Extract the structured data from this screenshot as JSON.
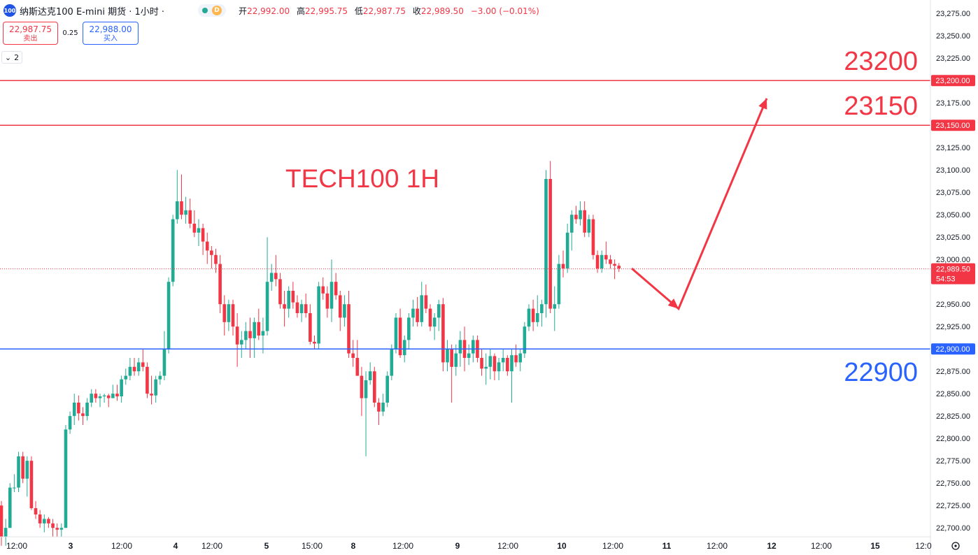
{
  "header": {
    "logo_text": "100",
    "symbol_title": "纳斯达克100 E-mini 期货 · 1小时 ·",
    "live_badge": "D",
    "ohlc": {
      "open_label": "开",
      "open": "22,992.00",
      "high_label": "高",
      "high": "22,995.75",
      "low_label": "低",
      "low": "22,987.75",
      "close_label": "收",
      "close": "22,989.50",
      "change": "−3.00 (−0.01%)"
    }
  },
  "trade": {
    "sell_price": "22,987.75",
    "sell_label": "卖出",
    "spread": "0.25",
    "buy_price": "22,988.00",
    "buy_label": "买入"
  },
  "indicator_toggle": {
    "count": "2"
  },
  "colors": {
    "up": "#22ab94",
    "down": "#f23645",
    "resistance": "#f23645",
    "support": "#2962ff",
    "annotation": "#f23645"
  },
  "chart_data": {
    "type": "candlestick",
    "title": "TECH100 1H",
    "ylim": [
      22690,
      23290
    ],
    "y_ticks": [
      "22,700.00",
      "22,725.00",
      "22,750.00",
      "22,775.00",
      "22,800.00",
      "22,825.00",
      "22,850.00",
      "22,875.00",
      "22,925.00",
      "22,950.00",
      "23,000.00",
      "23,025.00",
      "23,050.00",
      "23,075.00",
      "23,100.00",
      "23,125.00",
      "23,175.00",
      "23,225.00",
      "23,250.00",
      "23,275.00"
    ],
    "x_ticks": [
      "12:00",
      "3",
      "12:00",
      "4",
      "12:00",
      "5",
      "15:00",
      "8",
      "12:00",
      "9",
      "12:00",
      "10",
      "12:00",
      "11",
      "12:00",
      "12",
      "12:00",
      "15",
      "12:0"
    ],
    "last_price": {
      "value": 22989.5,
      "label": "22,989.50",
      "countdown": "54:53"
    },
    "levels": [
      {
        "value": 23200,
        "axis_label": "23,200.00",
        "text": "23200",
        "color": "#f23645"
      },
      {
        "value": 23150,
        "axis_label": "23,150.00",
        "text": "23150",
        "color": "#f23645"
      },
      {
        "value": 22900,
        "axis_label": "22,900.00",
        "text": "22900",
        "color": "#2962ff"
      }
    ],
    "projection": [
      [
        22990,
        22980
      ],
      [
        22945,
        22940
      ],
      [
        23180,
        23160
      ]
    ],
    "candles": [
      [
        22725,
        22730,
        22680,
        22690
      ],
      [
        22690,
        22710,
        22680,
        22700
      ],
      [
        22700,
        22750,
        22700,
        22745
      ],
      [
        22745,
        22760,
        22740,
        22745
      ],
      [
        22745,
        22785,
        22740,
        22780
      ],
      [
        22780,
        22785,
        22750,
        22755
      ],
      [
        22755,
        22780,
        22735,
        22775
      ],
      [
        22775,
        22780,
        22720,
        22722
      ],
      [
        22722,
        22730,
        22710,
        22715
      ],
      [
        22715,
        22720,
        22700,
        22705
      ],
      [
        22705,
        22715,
        22695,
        22710
      ],
      [
        22710,
        22712,
        22700,
        22705
      ],
      [
        22705,
        22710,
        22690,
        22700
      ],
      [
        22700,
        22705,
        22690,
        22698
      ],
      [
        22698,
        22705,
        22690,
        22700
      ],
      [
        22700,
        22815,
        22700,
        22810
      ],
      [
        22810,
        22830,
        22805,
        22825
      ],
      [
        22825,
        22850,
        22815,
        22840
      ],
      [
        22840,
        22848,
        22820,
        22828
      ],
      [
        22828,
        22835,
        22815,
        22825
      ],
      [
        22825,
        22845,
        22820,
        22840
      ],
      [
        22840,
        22855,
        22835,
        22850
      ],
      [
        22850,
        22855,
        22840,
        22845
      ],
      [
        22845,
        22850,
        22835,
        22847
      ],
      [
        22847,
        22850,
        22840,
        22848
      ],
      [
        22848,
        22850,
        22835,
        22845
      ],
      [
        22845,
        22860,
        22845,
        22850
      ],
      [
        22850,
        22860,
        22842,
        22847
      ],
      [
        22847,
        22870,
        22840,
        22866
      ],
      [
        22866,
        22878,
        22860,
        22870
      ],
      [
        22870,
        22890,
        22865,
        22880
      ],
      [
        22880,
        22890,
        22870,
        22875
      ],
      [
        22875,
        22890,
        22870,
        22885
      ],
      [
        22885,
        22900,
        22875,
        22880
      ],
      [
        22880,
        22885,
        22845,
        22850
      ],
      [
        22850,
        22870,
        22838,
        22848
      ],
      [
        22848,
        22870,
        22840,
        22866
      ],
      [
        22866,
        22875,
        22860,
        22870
      ],
      [
        22870,
        22920,
        22865,
        22900
      ],
      [
        22900,
        22980,
        22895,
        22975
      ],
      [
        22975,
        23050,
        22970,
        23045
      ],
      [
        23045,
        23100,
        23040,
        23065
      ],
      [
        23065,
        23095,
        23045,
        23050
      ],
      [
        23050,
        23070,
        23040,
        23055
      ],
      [
        23055,
        23068,
        23035,
        23040
      ],
      [
        23040,
        23055,
        23025,
        23030
      ],
      [
        23030,
        23045,
        23015,
        23035
      ],
      [
        23035,
        23040,
        23005,
        23020
      ],
      [
        23020,
        23030,
        22995,
        23010
      ],
      [
        23010,
        23015,
        22990,
        23005
      ],
      [
        23005,
        23012,
        22985,
        22995
      ],
      [
        22995,
        23005,
        22940,
        22950
      ],
      [
        22950,
        22960,
        22915,
        22930
      ],
      [
        22930,
        22955,
        22920,
        22950
      ],
      [
        22950,
        22955,
        22915,
        22925
      ],
      [
        22925,
        22940,
        22880,
        22905
      ],
      [
        22905,
        22920,
        22890,
        22910
      ],
      [
        22910,
        22930,
        22900,
        22920
      ],
      [
        22920,
        22935,
        22890,
        22912
      ],
      [
        22912,
        22935,
        22890,
        22930
      ],
      [
        22930,
        22945,
        22910,
        22915
      ],
      [
        22915,
        22935,
        22895,
        22920
      ],
      [
        22920,
        23025,
        22915,
        22975
      ],
      [
        22975,
        22995,
        22965,
        22985
      ],
      [
        22985,
        23005,
        22970,
        22978
      ],
      [
        22978,
        22985,
        22945,
        22950
      ],
      [
        22950,
        22965,
        22925,
        22945
      ],
      [
        22945,
        22970,
        22935,
        22965
      ],
      [
        22965,
        22975,
        22945,
        22952
      ],
      [
        22952,
        22960,
        22935,
        22940
      ],
      [
        22940,
        22955,
        22930,
        22950
      ],
      [
        22950,
        22962,
        22935,
        22940
      ],
      [
        22940,
        22950,
        22905,
        22908
      ],
      [
        22908,
        22915,
        22900,
        22906
      ],
      [
        22906,
        22975,
        22900,
        22970
      ],
      [
        22970,
        22980,
        22955,
        22962
      ],
      [
        22962,
        22970,
        22935,
        22945
      ],
      [
        22945,
        23000,
        22930,
        22975
      ],
      [
        22975,
        22985,
        22955,
        22960
      ],
      [
        22960,
        22965,
        22920,
        22935
      ],
      [
        22935,
        22960,
        22925,
        22950
      ],
      [
        22950,
        22965,
        22890,
        22895
      ],
      [
        22895,
        22910,
        22880,
        22890
      ],
      [
        22890,
        22910,
        22870,
        22870
      ],
      [
        22870,
        22880,
        22825,
        22845
      ],
      [
        22845,
        22875,
        22780,
        22865
      ],
      [
        22865,
        22885,
        22860,
        22875
      ],
      [
        22875,
        22880,
        22835,
        22840
      ],
      [
        22840,
        22845,
        22815,
        22830
      ],
      [
        22830,
        22850,
        22825,
        22840
      ],
      [
        22840,
        22875,
        22835,
        22870
      ],
      [
        22870,
        22905,
        22865,
        22900
      ],
      [
        22900,
        22940,
        22895,
        22935
      ],
      [
        22935,
        22945,
        22890,
        22893
      ],
      [
        22893,
        22915,
        22885,
        22910
      ],
      [
        22910,
        22940,
        22900,
        22935
      ],
      [
        22935,
        22955,
        22925,
        22945
      ],
      [
        22945,
        22958,
        22925,
        22930
      ],
      [
        22930,
        22975,
        22925,
        22960
      ],
      [
        22960,
        22972,
        22940,
        22945
      ],
      [
        22945,
        22950,
        22920,
        22925
      ],
      [
        22925,
        22940,
        22910,
        22935
      ],
      [
        22935,
        22955,
        22920,
        22950
      ],
      [
        22950,
        22957,
        22875,
        22885
      ],
      [
        22885,
        22910,
        22875,
        22900
      ],
      [
        22900,
        22905,
        22840,
        22880
      ],
      [
        22880,
        22905,
        22870,
        22895
      ],
      [
        22895,
        22920,
        22880,
        22910
      ],
      [
        22910,
        22925,
        22875,
        22890
      ],
      [
        22890,
        22905,
        22882,
        22895
      ],
      [
        22895,
        22915,
        22885,
        22910
      ],
      [
        22910,
        22915,
        22885,
        22890
      ],
      [
        22890,
        22900,
        22870,
        22878
      ],
      [
        22878,
        22895,
        22860,
        22880
      ],
      [
        22880,
        22900,
        22866,
        22892
      ],
      [
        22892,
        22895,
        22865,
        22875
      ],
      [
        22875,
        22890,
        22865,
        22885
      ],
      [
        22885,
        22900,
        22875,
        22890
      ],
      [
        22890,
        22893,
        22870,
        22875
      ],
      [
        22875,
        22900,
        22840,
        22893
      ],
      [
        22893,
        22905,
        22880,
        22885
      ],
      [
        22885,
        22900,
        22875,
        22895
      ],
      [
        22895,
        22930,
        22890,
        22925
      ],
      [
        22925,
        22950,
        22920,
        22945
      ],
      [
        22945,
        22955,
        22920,
        22930
      ],
      [
        22930,
        22960,
        22925,
        22940
      ],
      [
        22940,
        22955,
        22925,
        22950
      ],
      [
        22950,
        23100,
        22935,
        23090
      ],
      [
        23090,
        23110,
        22940,
        22945
      ],
      [
        22945,
        22970,
        22920,
        22950
      ],
      [
        22950,
        23005,
        22945,
        22995
      ],
      [
        22995,
        23010,
        22980,
        22990
      ],
      [
        22990,
        23040,
        22985,
        23030
      ],
      [
        23030,
        23055,
        23010,
        23050
      ],
      [
        23050,
        23060,
        23040,
        23045
      ],
      [
        23045,
        23065,
        23038,
        23055
      ],
      [
        23055,
        23065,
        23025,
        23030
      ],
      [
        23030,
        23050,
        23025,
        23045
      ],
      [
        23045,
        23050,
        23000,
        23005
      ],
      [
        23005,
        23010,
        22985,
        22990
      ],
      [
        22990,
        23010,
        22985,
        23005
      ],
      [
        23005,
        23020,
        22995,
        23000
      ],
      [
        23000,
        23005,
        22990,
        22995
      ],
      [
        22995,
        23000,
        22978,
        22993
      ],
      [
        22993,
        22996,
        22986,
        22990
      ]
    ]
  }
}
